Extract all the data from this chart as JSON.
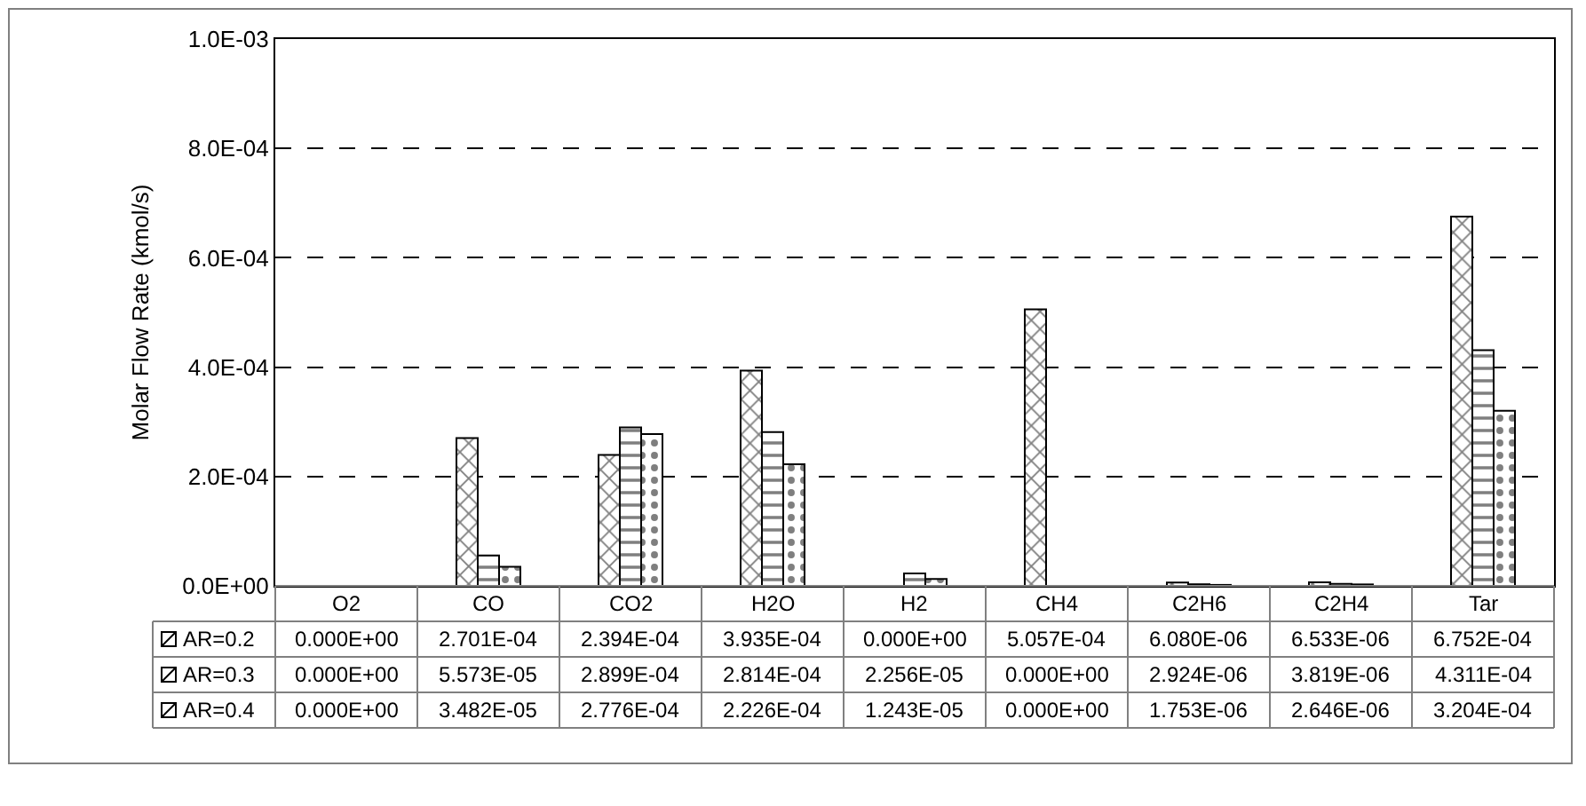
{
  "chart_data": {
    "type": "bar",
    "ylabel": "Molar Flow Rate (kmol/s)",
    "categories": [
      "O2",
      "CO",
      "CO2",
      "H2O",
      "H2",
      "CH4",
      "C2H6",
      "C2H4",
      "Tar"
    ],
    "series": [
      {
        "name": "AR=0.2",
        "color": "#000000",
        "values": [
          0.0,
          0.0002701,
          0.0002394,
          0.0003935,
          0.0,
          0.0005057,
          6.08e-06,
          6.533e-06,
          0.0006752
        ],
        "value_labels": [
          "0.000E+00",
          "2.701E-04",
          "2.394E-04",
          "3.935E-04",
          "0.000E+00",
          "5.057E-04",
          "6.080E-06",
          "6.533E-06",
          "6.752E-04"
        ]
      },
      {
        "name": "AR=0.3",
        "color": "#000000",
        "values": [
          0.0,
          5.573e-05,
          0.0002899,
          0.0002814,
          2.256e-05,
          0.0,
          2.924e-06,
          3.819e-06,
          0.0004311
        ],
        "value_labels": [
          "0.000E+00",
          "5.573E-05",
          "2.899E-04",
          "2.814E-04",
          "2.256E-05",
          "0.000E+00",
          "2.924E-06",
          "3.819E-06",
          "4.311E-04"
        ]
      },
      {
        "name": "AR=0.4",
        "color": "#000000",
        "values": [
          0.0,
          3.482e-05,
          0.0002776,
          0.0002226,
          1.243e-05,
          0.0,
          1.753e-06,
          2.646e-06,
          0.0003204
        ],
        "value_labels": [
          "0.000E+00",
          "3.482E-05",
          "2.776E-04",
          "2.226E-04",
          "1.243E-05",
          "0.000E+00",
          "1.753E-06",
          "2.646E-06",
          "3.204E-04"
        ]
      }
    ],
    "ylim": [
      0,
      0.001
    ],
    "yticks": [
      {
        "value": 0,
        "label": "0.0E+00"
      },
      {
        "value": 0.0002,
        "label": "2.0E-04"
      },
      {
        "value": 0.0004,
        "label": "4.0E-04"
      },
      {
        "value": 0.0006,
        "label": "6.0E-04"
      },
      {
        "value": 0.0008,
        "label": "8.0E-04"
      },
      {
        "value": 0.001,
        "label": "1.0E-03"
      }
    ],
    "grid": "y",
    "legend": "bottom"
  }
}
